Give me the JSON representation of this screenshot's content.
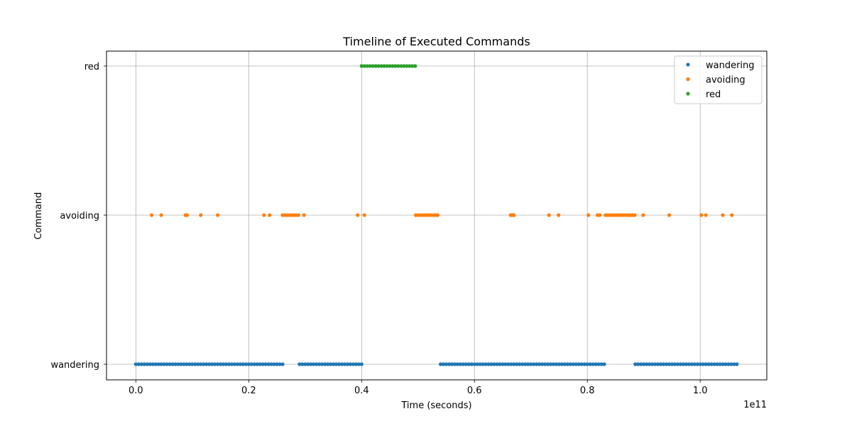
{
  "chart_data": {
    "type": "scatter",
    "title": "Timeline of Executed Commands",
    "xlabel": "Time (seconds)",
    "ylabel": "Command",
    "x_offset_label": "1e11",
    "x_scale": 100000000000.0,
    "xlim": [
      -0.052,
      1.118
    ],
    "x_ticks": [
      0.0,
      0.2,
      0.4,
      0.6,
      0.8,
      1.0
    ],
    "x_tick_labels": [
      "0.0",
      "0.2",
      "0.4",
      "0.6",
      "0.8",
      "1.0"
    ],
    "y_categories": [
      "wandering",
      "avoiding",
      "red"
    ],
    "grid": true,
    "legend_position": "top-right",
    "series": [
      {
        "name": "wandering",
        "color": "#1f77b4",
        "y": "wandering",
        "x": [
          0.0,
          0.005,
          0.01,
          0.015,
          0.02,
          0.025,
          0.03,
          0.035,
          0.04,
          0.045,
          0.05,
          0.055,
          0.06,
          0.065,
          0.07,
          0.075,
          0.08,
          0.085,
          0.09,
          0.095,
          0.1,
          0.105,
          0.11,
          0.115,
          0.12,
          0.125,
          0.13,
          0.135,
          0.14,
          0.145,
          0.15,
          0.155,
          0.16,
          0.165,
          0.17,
          0.175,
          0.18,
          0.185,
          0.19,
          0.195,
          0.2,
          0.205,
          0.21,
          0.215,
          0.22,
          0.225,
          0.23,
          0.235,
          0.24,
          0.245,
          0.25,
          0.255,
          0.26,
          0.29,
          0.295,
          0.3,
          0.305,
          0.31,
          0.315,
          0.32,
          0.325,
          0.33,
          0.335,
          0.34,
          0.345,
          0.35,
          0.355,
          0.36,
          0.365,
          0.37,
          0.375,
          0.38,
          0.385,
          0.39,
          0.395,
          0.4,
          0.54,
          0.545,
          0.55,
          0.555,
          0.56,
          0.565,
          0.57,
          0.575,
          0.58,
          0.585,
          0.59,
          0.595,
          0.6,
          0.605,
          0.61,
          0.615,
          0.62,
          0.625,
          0.63,
          0.635,
          0.64,
          0.645,
          0.65,
          0.655,
          0.66,
          0.665,
          0.67,
          0.675,
          0.68,
          0.685,
          0.69,
          0.695,
          0.7,
          0.705,
          0.71,
          0.715,
          0.72,
          0.725,
          0.73,
          0.735,
          0.74,
          0.745,
          0.75,
          0.755,
          0.76,
          0.765,
          0.77,
          0.775,
          0.78,
          0.785,
          0.79,
          0.795,
          0.8,
          0.805,
          0.81,
          0.815,
          0.82,
          0.825,
          0.83,
          0.885,
          0.89,
          0.895,
          0.9,
          0.905,
          0.91,
          0.915,
          0.92,
          0.925,
          0.93,
          0.935,
          0.94,
          0.945,
          0.95,
          0.955,
          0.96,
          0.965,
          0.97,
          0.975,
          0.98,
          0.985,
          0.99,
          0.995,
          1.0,
          1.005,
          1.01,
          1.015,
          1.02,
          1.025,
          1.03,
          1.035,
          1.04,
          1.045,
          1.05,
          1.055,
          1.06,
          1.065
        ]
      },
      {
        "name": "avoiding",
        "color": "#ff7f0e",
        "y": "avoiding",
        "x": [
          0.028,
          0.045,
          0.088,
          0.091,
          0.115,
          0.145,
          0.227,
          0.237,
          0.26,
          0.264,
          0.268,
          0.272,
          0.276,
          0.28,
          0.284,
          0.288,
          0.298,
          0.393,
          0.405,
          0.496,
          0.5,
          0.504,
          0.508,
          0.512,
          0.516,
          0.52,
          0.524,
          0.528,
          0.532,
          0.535,
          0.664,
          0.667,
          0.67,
          0.732,
          0.749,
          0.802,
          0.818,
          0.822,
          0.832,
          0.836,
          0.84,
          0.844,
          0.848,
          0.852,
          0.856,
          0.86,
          0.864,
          0.868,
          0.872,
          0.876,
          0.88,
          0.884,
          0.899,
          0.945,
          1.002,
          1.01,
          1.04,
          1.056
        ]
      },
      {
        "name": "red",
        "color": "#2ca02c",
        "y": "red",
        "x": [
          0.4,
          0.405,
          0.41,
          0.415,
          0.42,
          0.425,
          0.43,
          0.435,
          0.44,
          0.445,
          0.45,
          0.455,
          0.46,
          0.465,
          0.47,
          0.475,
          0.48,
          0.485,
          0.49,
          0.495
        ]
      }
    ]
  }
}
